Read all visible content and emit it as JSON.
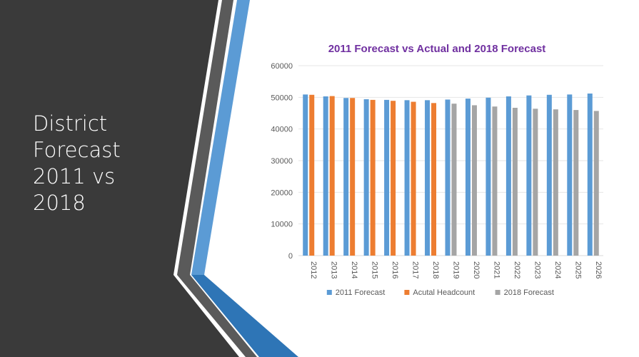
{
  "slide": {
    "title_lines": [
      "District",
      "Forecast",
      "2011 vs",
      "2018"
    ]
  },
  "theme": {
    "panel_color": "#3a3a3a",
    "accent_blue": "#5b9bd5",
    "accent_blue_dark": "#2e75b6",
    "stripe_gray": "#5a5a5a"
  },
  "chart_data": {
    "type": "bar",
    "title": "2011 Forecast vs Actual and 2018 Forecast",
    "xlabel": "",
    "ylabel": "",
    "ylim": [
      0,
      60000
    ],
    "yticks": [
      0,
      10000,
      20000,
      30000,
      40000,
      50000,
      60000
    ],
    "grid": true,
    "legend_position": "bottom",
    "categories": [
      "2012",
      "2013",
      "2014",
      "2015",
      "2016",
      "2017",
      "2018",
      "2019",
      "2020",
      "2021",
      "2022",
      "2023",
      "2024",
      "2025",
      "2026"
    ],
    "series": [
      {
        "name": "2011 Forecast",
        "color": "#5b9bd5",
        "values": [
          50900,
          50300,
          49800,
          49400,
          49200,
          49100,
          49100,
          49300,
          49600,
          49900,
          50300,
          50600,
          50800,
          50900,
          51200
        ]
      },
      {
        "name": "Acutal Headcount",
        "color": "#ed7d31",
        "values": [
          50800,
          50400,
          49800,
          49200,
          48900,
          48600,
          48200,
          null,
          null,
          null,
          null,
          null,
          null,
          null,
          null
        ]
      },
      {
        "name": "2018 Forecast",
        "color": "#a5a5a5",
        "values": [
          null,
          null,
          null,
          null,
          null,
          null,
          null,
          48000,
          47500,
          47100,
          46700,
          46400,
          46200,
          46000,
          45700
        ]
      }
    ]
  }
}
